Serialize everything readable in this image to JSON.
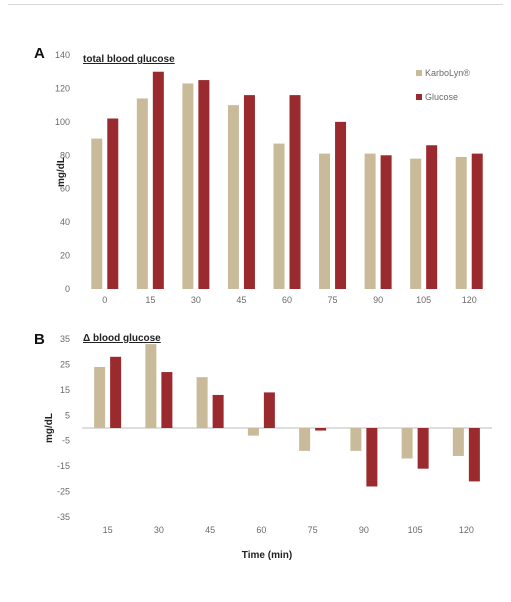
{
  "chart_data": [
    {
      "type": "bar",
      "panel_label": "A",
      "title": "total blood  glucose",
      "xlabel": "",
      "ylabel": "mg/dL",
      "ylim": [
        0,
        140
      ],
      "yticks": [
        "0",
        "20",
        "40",
        "60",
        "80",
        "100",
        "120",
        "140"
      ],
      "categories": [
        "0",
        "15",
        "30",
        "45",
        "60",
        "75",
        "90",
        "105",
        "120"
      ],
      "series": [
        {
          "name": "KarboLyn®",
          "color": "#c9bb9a",
          "values": [
            90,
            114,
            123,
            110,
            87,
            81,
            81,
            78,
            79
          ]
        },
        {
          "name": "Glucose",
          "color": "#9b2a2f",
          "values": [
            102,
            130,
            125,
            116,
            116,
            100,
            80,
            86,
            81
          ]
        }
      ],
      "legend": "top-right",
      "grid": false
    },
    {
      "type": "bar",
      "panel_label": "B",
      "title": "Δ blood glucose",
      "xlabel": "Time (min)",
      "ylabel": "mg/dL",
      "ylim": [
        -35,
        35
      ],
      "yticks": [
        "35",
        "25",
        "15",
        "5",
        "-5",
        "-15",
        "-25",
        "-35"
      ],
      "categories": [
        "15",
        "30",
        "45",
        "60",
        "75",
        "90",
        "105",
        "120"
      ],
      "series": [
        {
          "color": "#c9bb9a",
          "values": [
            24,
            33,
            20,
            -3,
            -9,
            -9,
            -12,
            -11
          ]
        },
        {
          "color": "#9b2a2f",
          "values": [
            28,
            22,
            13,
            14,
            -1,
            -23,
            -16,
            -21
          ]
        }
      ],
      "grid": false
    }
  ]
}
